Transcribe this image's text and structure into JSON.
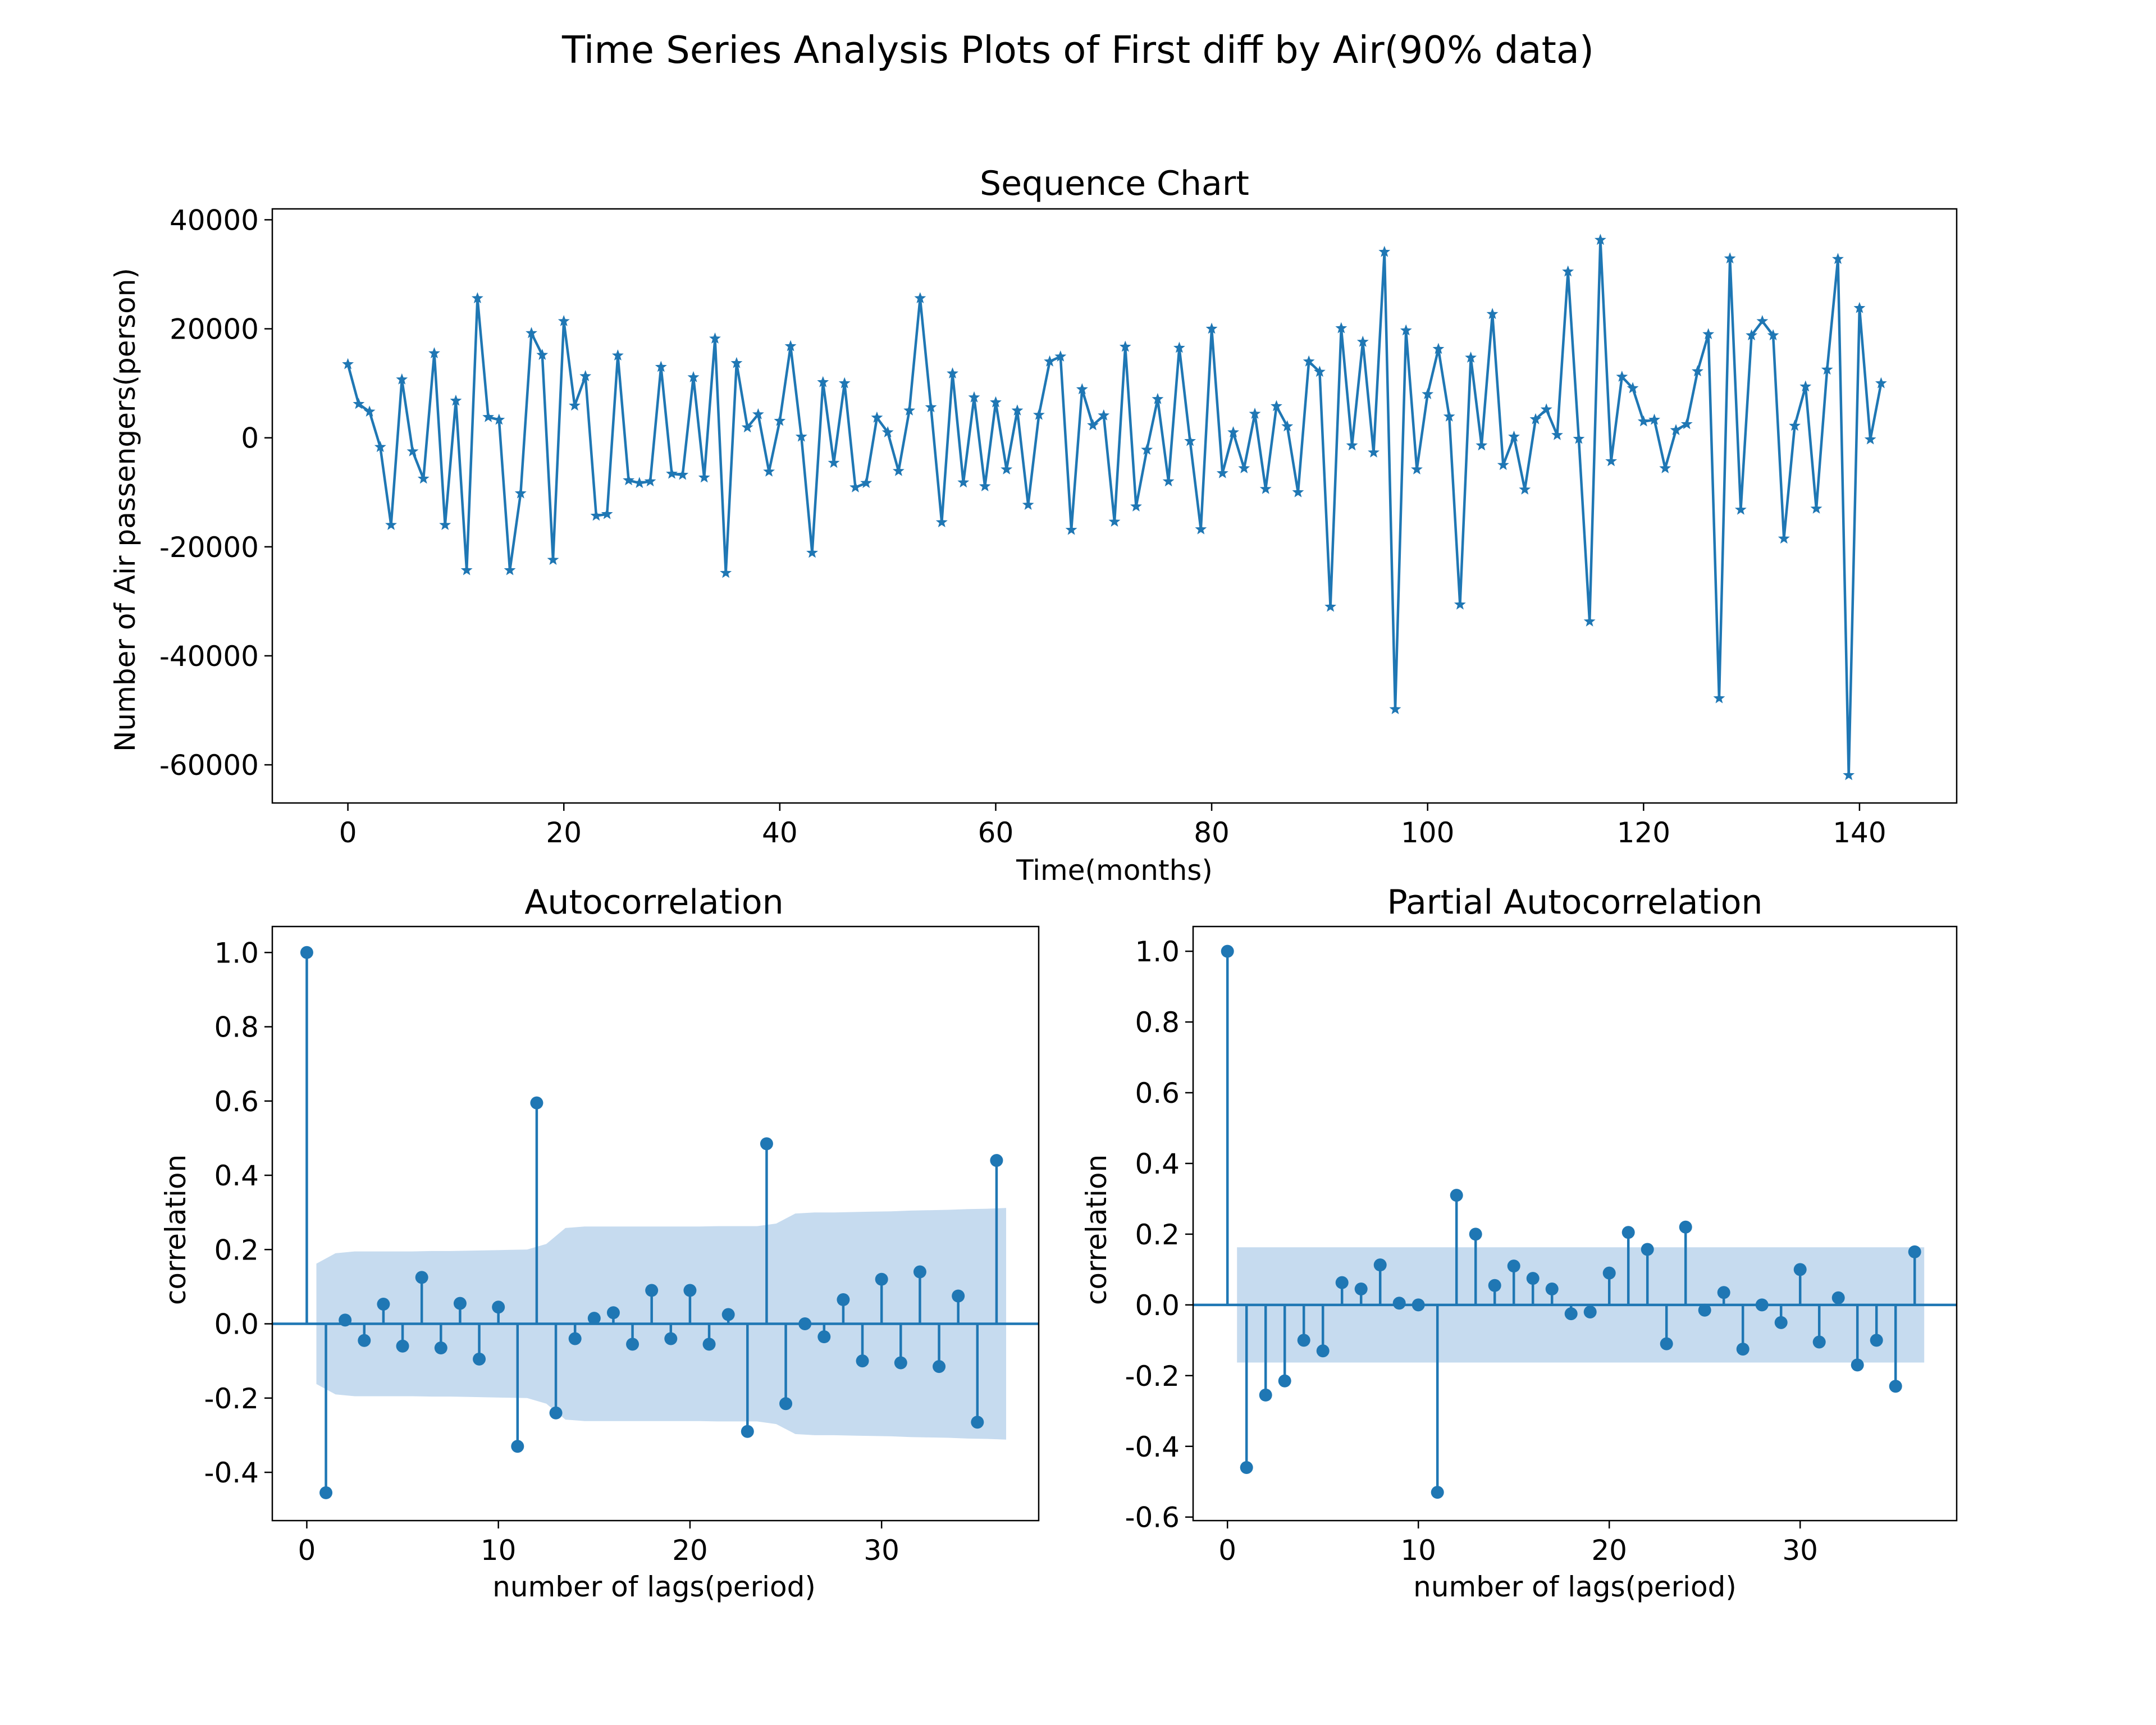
{
  "suptitle": "Time Series Analysis Plots of First diff by Air(90% data)",
  "colors": {
    "series": "#1f77b4",
    "band": "#c6dbef"
  },
  "chart_data": [
    {
      "id": "sequence",
      "type": "line",
      "marker": "star",
      "title": "Sequence Chart",
      "xlabel": "Time(months)",
      "ylabel": "Number of Air passengers(person)",
      "xlim": [
        -7,
        149
      ],
      "ylim": [
        -67000,
        42000
      ],
      "xticks": [
        0,
        20,
        40,
        60,
        80,
        100,
        120,
        140
      ],
      "yticks": [
        -60000,
        -40000,
        -20000,
        0,
        20000,
        40000
      ],
      "x_start": 0,
      "values": [
        13500,
        6200,
        4800,
        -1700,
        -16000,
        10700,
        -2500,
        -7500,
        15500,
        -16000,
        6800,
        -24300,
        25600,
        3800,
        3300,
        -24300,
        -10200,
        19200,
        15200,
        -22400,
        21400,
        5900,
        11300,
        -14300,
        -14000,
        15100,
        -7800,
        -8300,
        -8000,
        13000,
        -6600,
        -6800,
        11100,
        -7300,
        18200,
        -24800,
        13700,
        1900,
        4300,
        -6200,
        3100,
        16800,
        200,
        -21100,
        10200,
        -4600,
        10000,
        -9100,
        -8300,
        3700,
        1000,
        -6100,
        5000,
        25600,
        5600,
        -15500,
        11800,
        -8200,
        7400,
        -8900,
        6500,
        -5800,
        5000,
        -12300,
        4200,
        14000,
        14900,
        -16900,
        8900,
        2300,
        4100,
        -15400,
        16700,
        -12600,
        -2200,
        7100,
        -8000,
        16500,
        -600,
        -16800,
        20000,
        -6500,
        1000,
        -5600,
        4400,
        -9400,
        5800,
        2100,
        -10000,
        14000,
        12100,
        -31000,
        20100,
        -1400,
        17600,
        -2700,
        34100,
        -49800,
        19700,
        -5800,
        8000,
        16300,
        3900,
        -30600,
        14700,
        -1400,
        22700,
        -5000,
        200,
        -9500,
        3400,
        5200,
        500,
        30500,
        -200,
        -33700,
        36300,
        -4300,
        11200,
        9100,
        3000,
        3300,
        -5600,
        1400,
        2500,
        12200,
        19000,
        -47800,
        32900,
        -13200,
        18800,
        21400,
        18800,
        -18500,
        2200,
        9400,
        -13000,
        12500,
        32800,
        -61900,
        23800,
        -300,
        10000
      ]
    },
    {
      "id": "acf",
      "type": "stem",
      "title": "Autocorrelation",
      "xlabel": "number of lags(period)",
      "ylabel": "correlation",
      "xlim": [
        -1.8,
        38.2
      ],
      "ylim": [
        -0.53,
        1.07
      ],
      "xticks": [
        0,
        10,
        20,
        30
      ],
      "yticks": [
        -0.4,
        -0.2,
        0.0,
        0.2,
        0.4,
        0.6,
        0.8,
        1.0
      ],
      "lags": [
        0,
        1,
        2,
        3,
        4,
        5,
        6,
        7,
        8,
        9,
        10,
        11,
        12,
        13,
        14,
        15,
        16,
        17,
        18,
        19,
        20,
        21,
        22,
        23,
        24,
        25,
        26,
        27,
        28,
        29,
        30,
        31,
        32,
        33,
        34,
        35,
        36
      ],
      "values": [
        1.0,
        -0.455,
        0.01,
        -0.045,
        0.053,
        -0.06,
        0.125,
        -0.065,
        0.055,
        -0.095,
        0.045,
        -0.33,
        0.595,
        -0.24,
        -0.04,
        0.015,
        0.03,
        -0.055,
        0.09,
        -0.04,
        0.09,
        -0.055,
        0.025,
        -0.29,
        0.485,
        -0.215,
        0.0,
        -0.035,
        0.065,
        -0.1,
        0.12,
        -0.105,
        0.14,
        -0.115,
        0.075,
        -0.265,
        0.44
      ],
      "confidence_band": {
        "lags": [
          0.5,
          1.5,
          2.5,
          3.5,
          4.5,
          5.5,
          6.5,
          7.5,
          8.5,
          9.5,
          10.5,
          11.5,
          12.5,
          13.5,
          14.5,
          15.5,
          16.5,
          17.5,
          18.5,
          19.5,
          20.5,
          21.5,
          22.5,
          23.5,
          24.5,
          25.5,
          26.5,
          27.5,
          28.5,
          29.5,
          30.5,
          31.5,
          32.5,
          33.5,
          34.5,
          35.5,
          36.5
        ],
        "upper": [
          0.162,
          0.19,
          0.195,
          0.195,
          0.195,
          0.195,
          0.196,
          0.196,
          0.197,
          0.198,
          0.199,
          0.2,
          0.215,
          0.258,
          0.262,
          0.262,
          0.262,
          0.262,
          0.262,
          0.262,
          0.262,
          0.263,
          0.263,
          0.263,
          0.27,
          0.297,
          0.3,
          0.3,
          0.301,
          0.302,
          0.303,
          0.305,
          0.306,
          0.307,
          0.309,
          0.31,
          0.312
        ],
        "lower": [
          -0.162,
          -0.19,
          -0.195,
          -0.195,
          -0.195,
          -0.195,
          -0.196,
          -0.196,
          -0.197,
          -0.198,
          -0.199,
          -0.2,
          -0.215,
          -0.258,
          -0.262,
          -0.262,
          -0.262,
          -0.262,
          -0.262,
          -0.262,
          -0.262,
          -0.263,
          -0.263,
          -0.263,
          -0.27,
          -0.297,
          -0.3,
          -0.3,
          -0.301,
          -0.302,
          -0.303,
          -0.305,
          -0.306,
          -0.307,
          -0.309,
          -0.31,
          -0.312
        ]
      }
    },
    {
      "id": "pacf",
      "type": "stem",
      "title": "Partial Autocorrelation",
      "xlabel": "number of lags(period)",
      "ylabel": "correlation",
      "xlim": [
        -1.8,
        38.2
      ],
      "ylim": [
        -0.61,
        1.07
      ],
      "xticks": [
        0,
        10,
        20,
        30
      ],
      "yticks": [
        -0.6,
        -0.4,
        -0.2,
        0.0,
        0.2,
        0.4,
        0.6,
        0.8,
        1.0
      ],
      "lags": [
        0,
        1,
        2,
        3,
        4,
        5,
        6,
        7,
        8,
        9,
        10,
        11,
        12,
        13,
        14,
        15,
        16,
        17,
        18,
        19,
        20,
        21,
        22,
        23,
        24,
        25,
        26,
        27,
        28,
        29,
        30,
        31,
        32,
        33,
        34,
        35,
        36
      ],
      "values": [
        1.0,
        -0.46,
        -0.255,
        -0.215,
        -0.1,
        -0.13,
        0.063,
        0.045,
        0.113,
        0.005,
        0.0,
        -0.53,
        0.31,
        0.2,
        0.055,
        0.11,
        0.075,
        0.045,
        -0.025,
        -0.02,
        0.09,
        0.205,
        0.157,
        -0.11,
        0.22,
        -0.015,
        0.035,
        -0.125,
        0.0,
        -0.05,
        0.1,
        -0.105,
        0.02,
        -0.17,
        -0.1,
        -0.23,
        0.15
      ],
      "confidence_band": {
        "lags": [
          0.5,
          36.5
        ],
        "upper": [
          0.163,
          0.163
        ],
        "lower": [
          -0.163,
          -0.163
        ]
      }
    }
  ]
}
